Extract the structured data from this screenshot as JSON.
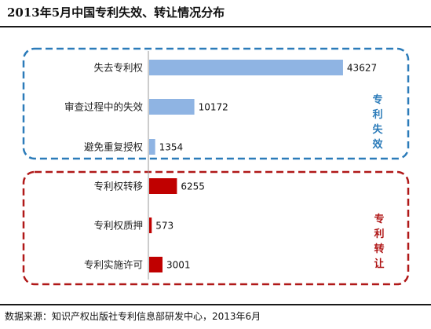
{
  "title": "2013年5月中国专利失效、转让情况分布",
  "source": "数据来源：知识产权出版社专利信息部研发中心，2013年6月",
  "colors": {
    "invalidation": "#8fb4e3",
    "transfer": "#c00000",
    "invalidation_box": "#2b7bb9",
    "transfer_box": "#b01818"
  },
  "chart_data": {
    "type": "bar",
    "orientation": "horizontal",
    "title": "2013年5月中国专利失效、转让情况分布",
    "categories": [
      "失去专利权",
      "审查过程中的失效",
      "避免重复授权",
      "专利权转移",
      "专利权质押",
      "专利实施许可"
    ],
    "values": [
      43627,
      10172,
      1354,
      6255,
      573,
      3001
    ],
    "groups": [
      {
        "name": "专利失效",
        "label_chars": [
          "专",
          "利",
          "失",
          "效"
        ],
        "categories": [
          "失去专利权",
          "审查过程中的失效",
          "避免重复授权"
        ],
        "color": "#8fb4e3"
      },
      {
        "name": "专利转让",
        "label_chars": [
          "专",
          "利",
          "转",
          "让"
        ],
        "categories": [
          "专利权转移",
          "专利权质押",
          "专利实施许可"
        ],
        "color": "#c00000"
      }
    ],
    "xlim": [
      0,
      50000
    ],
    "grid": false,
    "legend": "none",
    "data_labels": true
  }
}
